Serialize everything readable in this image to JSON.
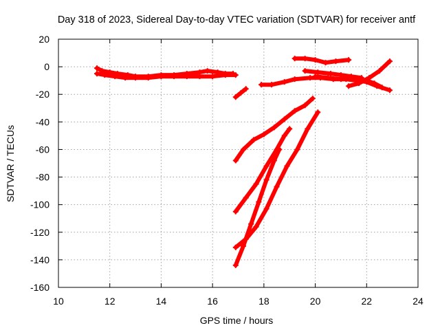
{
  "chart_data": {
    "type": "scatter",
    "title": "Day 318 of 2023, Sidereal Day-to-day VTEC variation (SDTVAR) for receiver antf",
    "xlabel": "GPS time / hours",
    "ylabel": "SDTVAR / TECUs",
    "xlim": [
      10,
      24
    ],
    "ylim": [
      -160,
      20
    ],
    "xticks": [
      10,
      12,
      14,
      16,
      18,
      20,
      22,
      24
    ],
    "yticks": [
      -160,
      -140,
      -120,
      -100,
      -80,
      -60,
      -40,
      -20,
      0,
      20
    ],
    "grid": true,
    "legend": "none",
    "color": "#ff0000",
    "series": [
      {
        "points": [
          [
            11.5,
            -1
          ],
          [
            11.7,
            -3
          ],
          [
            12.0,
            -4
          ],
          [
            12.3,
            -5
          ],
          [
            12.7,
            -6
          ],
          [
            13.0,
            -7
          ],
          [
            13.5,
            -7
          ],
          [
            14.0,
            -6
          ],
          [
            14.5,
            -6
          ],
          [
            15.0,
            -5
          ],
          [
            15.5,
            -4
          ],
          [
            15.8,
            -3
          ],
          [
            16.2,
            -4
          ],
          [
            16.5,
            -5
          ],
          [
            16.8,
            -5
          ]
        ]
      },
      {
        "points": [
          [
            11.5,
            -5
          ],
          [
            11.8,
            -6
          ],
          [
            12.2,
            -7
          ],
          [
            12.6,
            -8
          ],
          [
            13.0,
            -8
          ],
          [
            13.5,
            -8
          ],
          [
            14.0,
            -7
          ],
          [
            14.5,
            -7
          ],
          [
            15.0,
            -7
          ],
          [
            15.5,
            -7
          ],
          [
            16.0,
            -7
          ],
          [
            16.5,
            -6
          ],
          [
            16.9,
            -6
          ]
        ]
      },
      {
        "points": [
          [
            16.9,
            -22
          ],
          [
            17.1,
            -19
          ],
          [
            17.3,
            -16
          ]
        ]
      },
      {
        "points": [
          [
            17.9,
            -13
          ],
          [
            18.3,
            -13
          ],
          [
            18.8,
            -11
          ],
          [
            19.2,
            -9
          ],
          [
            19.8,
            -8
          ],
          [
            20.2,
            -8
          ],
          [
            20.7,
            -9
          ],
          [
            21.2,
            -9
          ],
          [
            21.6,
            -10
          ],
          [
            22.0,
            -11
          ],
          [
            22.4,
            -14
          ],
          [
            22.9,
            -17
          ]
        ]
      },
      {
        "points": [
          [
            19.2,
            6
          ],
          [
            19.6,
            6
          ],
          [
            20.0,
            5
          ],
          [
            20.4,
            3
          ],
          [
            20.8,
            4
          ],
          [
            21.3,
            5
          ]
        ]
      },
      {
        "points": [
          [
            19.6,
            -3
          ],
          [
            20.1,
            -4
          ],
          [
            20.6,
            -5
          ],
          [
            21.0,
            -6
          ],
          [
            21.4,
            -7
          ],
          [
            21.8,
            -8
          ]
        ]
      },
      {
        "points": [
          [
            20.0,
            -7
          ],
          [
            20.5,
            -8
          ],
          [
            21.0,
            -9
          ],
          [
            21.5,
            -9
          ],
          [
            22.0,
            -10
          ],
          [
            22.3,
            -12
          ],
          [
            22.6,
            -15
          ]
        ]
      },
      {
        "points": [
          [
            21.3,
            -14
          ],
          [
            21.7,
            -12
          ],
          [
            22.1,
            -8
          ],
          [
            22.5,
            -3
          ],
          [
            22.9,
            4
          ]
        ]
      },
      {
        "points": [
          [
            16.9,
            -68
          ],
          [
            17.2,
            -60
          ],
          [
            17.6,
            -53
          ],
          [
            18.0,
            -49
          ],
          [
            18.4,
            -44
          ],
          [
            18.8,
            -38
          ],
          [
            19.2,
            -32
          ],
          [
            19.6,
            -28
          ],
          [
            19.9,
            -23
          ]
        ]
      },
      {
        "points": [
          [
            16.9,
            -105
          ],
          [
            17.3,
            -95
          ],
          [
            17.7,
            -85
          ],
          [
            18.1,
            -72
          ],
          [
            18.5,
            -60
          ],
          [
            18.8,
            -50
          ],
          [
            19.0,
            -45
          ]
        ]
      },
      {
        "points": [
          [
            16.9,
            -131
          ],
          [
            17.3,
            -125
          ],
          [
            17.7,
            -116
          ],
          [
            18.1,
            -103
          ],
          [
            18.5,
            -87
          ],
          [
            18.9,
            -72
          ],
          [
            19.3,
            -60
          ],
          [
            19.7,
            -45
          ],
          [
            20.1,
            -33
          ]
        ]
      },
      {
        "points": [
          [
            16.9,
            -144
          ],
          [
            17.2,
            -130
          ],
          [
            17.5,
            -114
          ],
          [
            17.8,
            -98
          ],
          [
            18.1,
            -82
          ],
          [
            18.4,
            -68
          ],
          [
            18.6,
            -60
          ]
        ]
      }
    ]
  }
}
